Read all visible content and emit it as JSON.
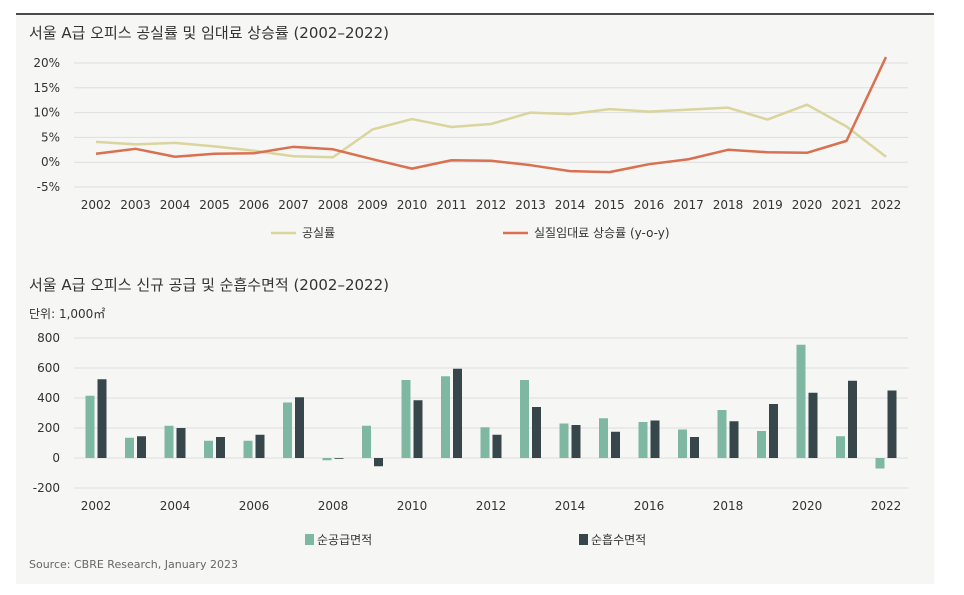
{
  "source": "Source: CBRE Research, January 2023",
  "chart_data": [
    {
      "type": "line",
      "title": "서울 A급 오피스 공실률 및 임대료 상승률 (2002–2022)",
      "x": [
        "2002",
        "2003",
        "2004",
        "2005",
        "2006",
        "2007",
        "2008",
        "2009",
        "2010",
        "2011",
        "2012",
        "2013",
        "2014",
        "2015",
        "2016",
        "2017",
        "2018",
        "2019",
        "2020",
        "2021",
        "2022"
      ],
      "y_ticks": [
        "20%",
        "15%",
        "10%",
        "5%",
        "0%",
        "-5%"
      ],
      "ylim": [
        -5,
        20
      ],
      "grid": true,
      "legend_position": "bottom",
      "series": [
        {
          "name": "공실률",
          "color": "#dad49d",
          "values": [
            4.1,
            3.6,
            3.9,
            3.2,
            2.3,
            1.2,
            1.0,
            6.6,
            8.7,
            7.1,
            7.7,
            10.0,
            9.7,
            10.7,
            10.2,
            10.6,
            11.0,
            8.6,
            11.6,
            7.2,
            1.1
          ]
        },
        {
          "name": "실질임대료 상승률 (y-o-y)",
          "color": "#d9704f",
          "values": [
            1.7,
            2.7,
            1.1,
            1.7,
            1.8,
            3.1,
            2.6,
            0.6,
            -1.3,
            0.4,
            0.3,
            -0.6,
            -1.8,
            -2.0,
            -0.4,
            0.6,
            2.5,
            2.0,
            1.9,
            4.3,
            21.2
          ]
        }
      ]
    },
    {
      "type": "bar",
      "title": "서울 A급 오피스 신규 공급 및 순흡수면적 (2002–2022)",
      "unit_label": "단위: 1,000㎡",
      "categories": [
        "2002",
        "2003",
        "2004",
        "2005",
        "2006",
        "2007",
        "2008",
        "2009",
        "2010",
        "2011",
        "2012",
        "2013",
        "2014",
        "2015",
        "2016",
        "2017",
        "2018",
        "2019",
        "2020",
        "2021",
        "2022"
      ],
      "x_tick_labels": [
        "2002",
        "2004",
        "2006",
        "2008",
        "2010",
        "2012",
        "2014",
        "2016",
        "2018",
        "2020",
        "2022"
      ],
      "y_ticks": [
        "800",
        "600",
        "400",
        "200",
        "0",
        "-200"
      ],
      "ylim": [
        -200,
        800
      ],
      "grid": true,
      "legend_position": "bottom",
      "series": [
        {
          "name": "순공급면적",
          "color": "#7fb8a2",
          "values": [
            415,
            135,
            215,
            115,
            115,
            370,
            -15,
            215,
            520,
            545,
            205,
            520,
            230,
            265,
            240,
            190,
            320,
            180,
            755,
            145,
            -70
          ]
        },
        {
          "name": "순흡수면적",
          "color": "#36464a",
          "values": [
            525,
            145,
            200,
            140,
            155,
            405,
            -5,
            -55,
            385,
            595,
            155,
            340,
            220,
            175,
            250,
            140,
            245,
            360,
            435,
            515,
            450
          ]
        }
      ]
    }
  ]
}
